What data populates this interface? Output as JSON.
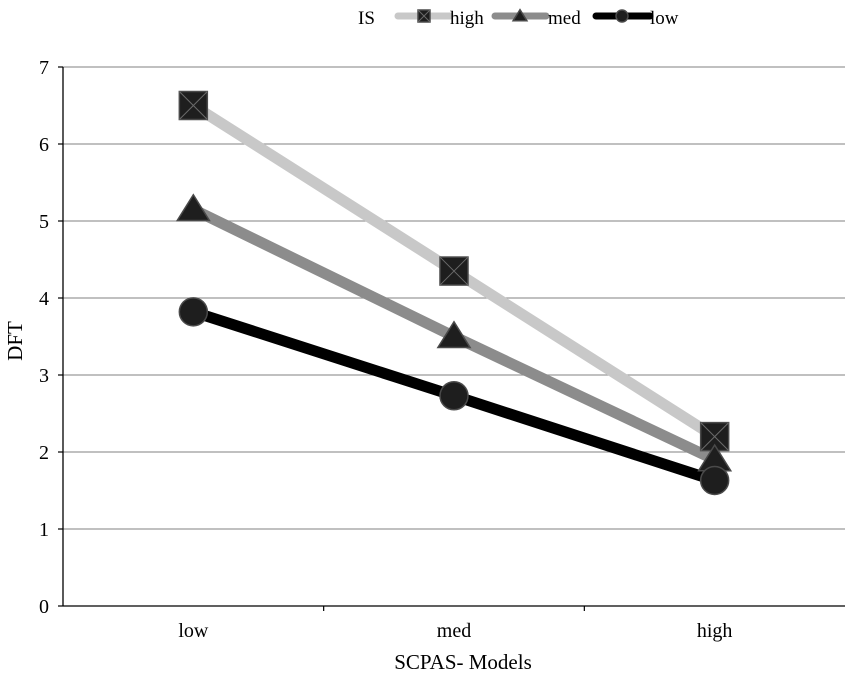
{
  "chart_data": {
    "type": "line",
    "title": "",
    "xlabel": "SCPAS- Models",
    "ylabel": "DFT",
    "categories": [
      "low",
      "med",
      "high"
    ],
    "ylim": [
      0,
      7
    ],
    "yticks": [
      0,
      1,
      2,
      3,
      4,
      5,
      6,
      7
    ],
    "grid": true,
    "legend": {
      "title": "IS",
      "position": "top"
    },
    "series": [
      {
        "name": "high",
        "marker": "square",
        "color": "#c8c8c8",
        "values": [
          6.5,
          4.35,
          2.2
        ]
      },
      {
        "name": "med",
        "marker": "triangle",
        "color": "#8c8c8c",
        "values": [
          5.15,
          3.5,
          1.9
        ]
      },
      {
        "name": "low",
        "marker": "circle",
        "color": "#000000",
        "values": [
          3.82,
          2.73,
          1.63
        ]
      }
    ]
  }
}
